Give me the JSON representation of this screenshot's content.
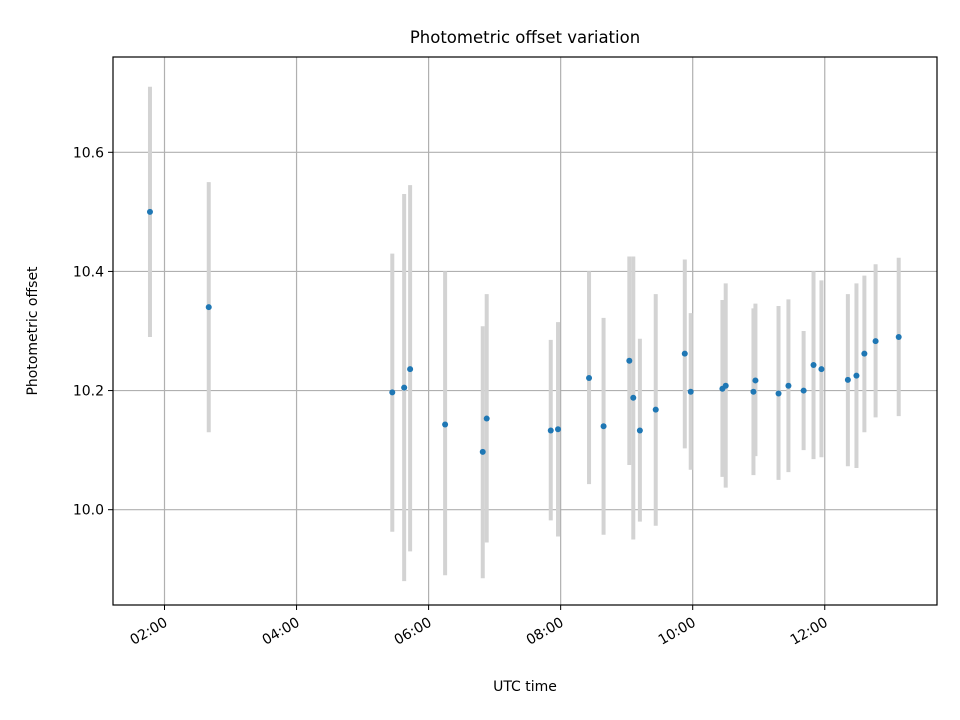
{
  "chart_data": {
    "type": "scatter",
    "title": "Photometric offset variation",
    "xlabel": "UTC time",
    "ylabel": "Photometric offset",
    "x_unit": "hours UTC",
    "x_tick_labels": [
      "02:00",
      "04:00",
      "06:00",
      "08:00",
      "10:00",
      "12:00"
    ],
    "x_ticks": [
      2,
      4,
      6,
      8,
      10,
      12
    ],
    "y_tick_labels": [
      "10.0",
      "10.2",
      "10.4",
      "10.6"
    ],
    "y_ticks": [
      10.0,
      10.2,
      10.4,
      10.6
    ],
    "xlim": [
      1.22,
      13.7
    ],
    "ylim": [
      9.84,
      10.76
    ],
    "grid": true,
    "colors": {
      "point": "#1f77b4",
      "errorbar": "#d3d3d3",
      "grid": "#b0b0b0"
    },
    "series": [
      {
        "points": [
          {
            "x": 1.78,
            "y": 10.5,
            "lo": 10.29,
            "hi": 10.71
          },
          {
            "x": 2.67,
            "y": 10.34,
            "lo": 10.13,
            "hi": 10.55
          },
          {
            "x": 5.45,
            "y": 10.197,
            "lo": 9.963,
            "hi": 10.43
          },
          {
            "x": 5.63,
            "y": 10.205,
            "lo": 9.88,
            "hi": 10.53
          },
          {
            "x": 5.72,
            "y": 10.236,
            "lo": 9.93,
            "hi": 10.545
          },
          {
            "x": 6.25,
            "y": 10.143,
            "lo": 9.89,
            "hi": 10.4
          },
          {
            "x": 6.82,
            "y": 10.097,
            "lo": 9.885,
            "hi": 10.308
          },
          {
            "x": 6.88,
            "y": 10.153,
            "lo": 9.945,
            "hi": 10.362
          },
          {
            "x": 7.85,
            "y": 10.133,
            "lo": 9.982,
            "hi": 10.285
          },
          {
            "x": 7.96,
            "y": 10.135,
            "lo": 9.955,
            "hi": 10.315
          },
          {
            "x": 8.43,
            "y": 10.221,
            "lo": 10.043,
            "hi": 10.4
          },
          {
            "x": 8.65,
            "y": 10.14,
            "lo": 9.958,
            "hi": 10.322
          },
          {
            "x": 9.04,
            "y": 10.25,
            "lo": 10.075,
            "hi": 10.425
          },
          {
            "x": 9.1,
            "y": 10.188,
            "lo": 9.95,
            "hi": 10.425
          },
          {
            "x": 9.2,
            "y": 10.133,
            "lo": 9.98,
            "hi": 10.287
          },
          {
            "x": 9.44,
            "y": 10.168,
            "lo": 9.973,
            "hi": 10.362
          },
          {
            "x": 9.88,
            "y": 10.262,
            "lo": 10.103,
            "hi": 10.42
          },
          {
            "x": 9.97,
            "y": 10.198,
            "lo": 10.067,
            "hi": 10.33
          },
          {
            "x": 10.45,
            "y": 10.203,
            "lo": 10.055,
            "hi": 10.352
          },
          {
            "x": 10.5,
            "y": 10.208,
            "lo": 10.037,
            "hi": 10.38
          },
          {
            "x": 10.92,
            "y": 10.198,
            "lo": 10.058,
            "hi": 10.338
          },
          {
            "x": 10.95,
            "y": 10.217,
            "lo": 10.09,
            "hi": 10.346
          },
          {
            "x": 11.3,
            "y": 10.195,
            "lo": 10.05,
            "hi": 10.342
          },
          {
            "x": 11.45,
            "y": 10.208,
            "lo": 10.063,
            "hi": 10.353
          },
          {
            "x": 11.68,
            "y": 10.2,
            "lo": 10.1,
            "hi": 10.3
          },
          {
            "x": 11.83,
            "y": 10.243,
            "lo": 10.085,
            "hi": 10.4
          },
          {
            "x": 11.95,
            "y": 10.236,
            "lo": 10.088,
            "hi": 10.385
          },
          {
            "x": 12.35,
            "y": 10.218,
            "lo": 10.073,
            "hi": 10.362
          },
          {
            "x": 12.48,
            "y": 10.225,
            "lo": 10.07,
            "hi": 10.38
          },
          {
            "x": 12.6,
            "y": 10.262,
            "lo": 10.13,
            "hi": 10.393
          },
          {
            "x": 12.77,
            "y": 10.283,
            "lo": 10.155,
            "hi": 10.412
          },
          {
            "x": 13.12,
            "y": 10.29,
            "lo": 10.157,
            "hi": 10.423
          }
        ]
      }
    ]
  }
}
